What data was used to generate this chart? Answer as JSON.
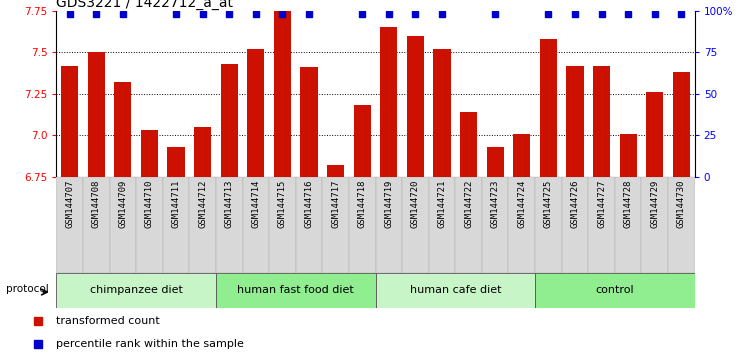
{
  "title": "GDS3221 / 1422712_a_at",
  "samples": [
    "GSM144707",
    "GSM144708",
    "GSM144709",
    "GSM144710",
    "GSM144711",
    "GSM144712",
    "GSM144713",
    "GSM144714",
    "GSM144715",
    "GSM144716",
    "GSM144717",
    "GSM144718",
    "GSM144719",
    "GSM144720",
    "GSM144721",
    "GSM144722",
    "GSM144723",
    "GSM144724",
    "GSM144725",
    "GSM144726",
    "GSM144727",
    "GSM144728",
    "GSM144729",
    "GSM144730"
  ],
  "values": [
    7.42,
    7.5,
    7.32,
    7.03,
    6.93,
    7.05,
    7.43,
    7.52,
    7.75,
    7.41,
    6.82,
    7.18,
    7.65,
    7.6,
    7.52,
    7.14,
    6.93,
    7.01,
    7.58,
    7.42,
    7.42,
    7.01,
    7.26,
    7.38
  ],
  "blue_squares": [
    true,
    true,
    true,
    false,
    true,
    true,
    true,
    true,
    true,
    true,
    false,
    true,
    true,
    true,
    true,
    false,
    true,
    false,
    true,
    true,
    true,
    true,
    true,
    true
  ],
  "groups": [
    {
      "label": "chimpanzee diet",
      "start": 0,
      "end": 6
    },
    {
      "label": "human fast food diet",
      "start": 6,
      "end": 12
    },
    {
      "label": "human cafe diet",
      "start": 12,
      "end": 18
    },
    {
      "label": "control",
      "start": 18,
      "end": 24
    }
  ],
  "group_colors": [
    "#c8f5c8",
    "#90ee90",
    "#c8f5c8",
    "#90ee90"
  ],
  "ylim": [
    6.75,
    7.75
  ],
  "yticks": [
    6.75,
    7.0,
    7.25,
    7.5,
    7.75
  ],
  "right_ytick_labels": [
    "0",
    "25",
    "50",
    "75",
    "100%"
  ],
  "right_ytick_pcts": [
    0,
    25,
    50,
    75,
    100
  ],
  "bar_color": "#cc1100",
  "square_color": "#0000cc",
  "bar_width": 0.65,
  "background_color": "#ffffff",
  "protocol_label": "protocol",
  "legend1": "transformed count",
  "legend2": "percentile rank within the sample",
  "title_fontsize": 10,
  "tick_fontsize": 7.5,
  "sample_fontsize": 6.5,
  "group_fontsize": 8
}
